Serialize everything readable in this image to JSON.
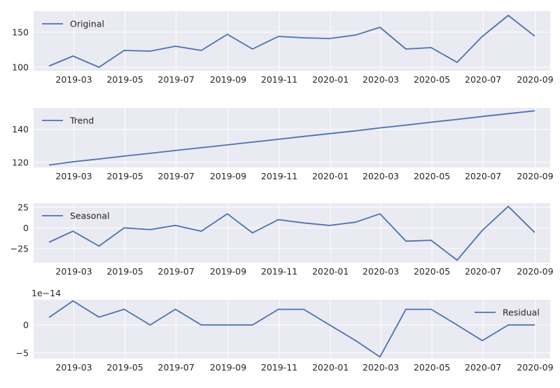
{
  "chart_data": [
    {
      "type": "line",
      "legend": "top-left",
      "grid": true,
      "x": [
        "2019-01-31",
        "2019-02-28",
        "2019-03-31",
        "2019-04-30",
        "2019-05-31",
        "2019-06-30",
        "2019-07-31",
        "2019-08-31",
        "2019-09-30",
        "2019-10-31",
        "2019-11-30",
        "2019-12-31",
        "2020-01-31",
        "2020-02-29",
        "2020-03-31",
        "2020-04-30",
        "2020-05-31",
        "2020-06-30",
        "2020-07-31",
        "2020-08-31"
      ],
      "xtick_labels": [
        "2019-03",
        "2019-05",
        "2019-07",
        "2019-09",
        "2019-11",
        "2020-01",
        "2020-03",
        "2020-05",
        "2020-07",
        "2020-09"
      ],
      "yticks": [
        100,
        150
      ],
      "ytick_labels": [
        "100",
        "150"
      ],
      "ylim": [
        95,
        180
      ],
      "offset_text": "",
      "series": [
        {
          "name": "Original",
          "values": [
            102,
            116,
            100,
            124,
            123,
            130,
            124,
            147,
            126,
            144,
            142,
            141,
            146,
            157,
            126,
            128,
            107,
            144,
            174,
            145
          ]
        }
      ]
    },
    {
      "type": "line",
      "legend": "top-left",
      "grid": true,
      "x": [
        "2019-01-31",
        "2019-02-28",
        "2019-03-31",
        "2019-04-30",
        "2019-05-31",
        "2019-06-30",
        "2019-07-31",
        "2019-08-31",
        "2019-09-30",
        "2019-10-31",
        "2019-11-30",
        "2019-12-31",
        "2020-01-31",
        "2020-02-29",
        "2020-03-31",
        "2020-04-30",
        "2020-05-31",
        "2020-06-30",
        "2020-07-31",
        "2020-08-31"
      ],
      "xtick_labels": [
        "2019-03",
        "2019-05",
        "2019-07",
        "2019-09",
        "2019-11",
        "2020-01",
        "2020-03",
        "2020-05",
        "2020-07",
        "2020-09"
      ],
      "yticks": [
        120,
        140
      ],
      "ytick_labels": [
        "120",
        "140"
      ],
      "ylim": [
        117,
        153
      ],
      "offset_text": "",
      "series": [
        {
          "name": "Trend",
          "values": [
            118.5,
            120.4,
            122.1,
            123.8,
            125.5,
            127.2,
            128.9,
            130.6,
            132.3,
            134.0,
            135.7,
            137.4,
            139.1,
            140.9,
            142.6,
            144.3,
            146.0,
            147.8,
            149.5,
            151.2
          ]
        }
      ]
    },
    {
      "type": "line",
      "legend": "top-left",
      "grid": true,
      "x": [
        "2019-01-31",
        "2019-02-28",
        "2019-03-31",
        "2019-04-30",
        "2019-05-31",
        "2019-06-30",
        "2019-07-31",
        "2019-08-31",
        "2019-09-30",
        "2019-10-31",
        "2019-11-30",
        "2019-12-31",
        "2020-01-31",
        "2020-02-29",
        "2020-03-31",
        "2020-04-30",
        "2020-05-31",
        "2020-06-30",
        "2020-07-31",
        "2020-08-31"
      ],
      "xtick_labels": [
        "2019-03",
        "2019-05",
        "2019-07",
        "2019-09",
        "2019-11",
        "2020-01",
        "2020-03",
        "2020-05",
        "2020-07",
        "2020-09"
      ],
      "yticks": [
        -25,
        0,
        25
      ],
      "ytick_labels": [
        "−25",
        "0",
        "25"
      ],
      "ylim": [
        -42,
        30
      ],
      "offset_text": "",
      "series": [
        {
          "name": "Seasonal",
          "values": [
            -17,
            -4,
            -22,
            0,
            -2,
            3,
            -4,
            17,
            -6,
            10,
            6,
            3,
            7,
            17,
            -16,
            -15,
            -39,
            -3,
            26,
            -5
          ]
        }
      ]
    },
    {
      "type": "line",
      "legend": "top-right",
      "grid": true,
      "x": [
        "2019-01-31",
        "2019-02-28",
        "2019-03-31",
        "2019-04-30",
        "2019-05-31",
        "2019-06-30",
        "2019-07-31",
        "2019-08-31",
        "2019-09-30",
        "2019-10-31",
        "2019-11-30",
        "2019-12-31",
        "2020-01-31",
        "2020-02-29",
        "2020-03-31",
        "2020-04-30",
        "2020-05-31",
        "2020-06-30",
        "2020-07-31",
        "2020-08-31"
      ],
      "xtick_labels": [
        "2019-03",
        "2019-05",
        "2019-07",
        "2019-09",
        "2019-11",
        "2020-01",
        "2020-03",
        "2020-05",
        "2020-07",
        "2020-09"
      ],
      "yticks": [
        -5,
        0
      ],
      "ytick_labels": [
        "−5",
        "0"
      ],
      "ylim": [
        -6,
        4.5
      ],
      "offset_text": "1e−14",
      "series": [
        {
          "name": "Residual",
          "values": [
            1.4,
            4.3,
            1.4,
            2.8,
            0,
            2.8,
            0,
            0,
            0,
            2.8,
            2.8,
            0,
            -2.8,
            -5.7,
            2.8,
            2.8,
            0,
            -2.8,
            0,
            0
          ]
        }
      ]
    }
  ],
  "colors": {
    "line": "#4c72b0",
    "panel_background": "#eaeaf2",
    "grid": "#ffffff",
    "text": "#262626"
  }
}
